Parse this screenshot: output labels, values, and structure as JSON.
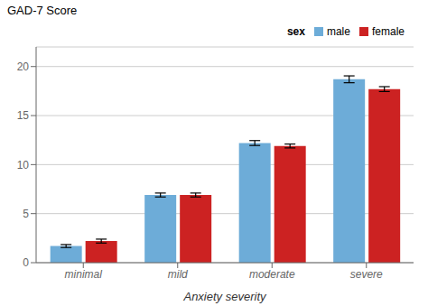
{
  "chart_data": {
    "type": "bar",
    "categories": [
      "minimal",
      "mild",
      "moderate",
      "severe"
    ],
    "series": [
      {
        "name": "male",
        "color": "#6dacd8",
        "values": [
          1.7,
          6.9,
          12.2,
          18.7
        ],
        "errors": [
          0.15,
          0.2,
          0.25,
          0.35
        ]
      },
      {
        "name": "female",
        "color": "#cc2222",
        "values": [
          2.2,
          6.9,
          11.9,
          17.7
        ],
        "errors": [
          0.2,
          0.2,
          0.2,
          0.25
        ]
      }
    ],
    "ylim": [
      0,
      22
    ],
    "yticks": [
      0,
      5,
      10,
      15,
      20
    ],
    "ylabel": "GAD-7 Score",
    "xlabel": "Anxiety severity",
    "legend_title": "sex",
    "legend": "upper right",
    "grid": true
  }
}
